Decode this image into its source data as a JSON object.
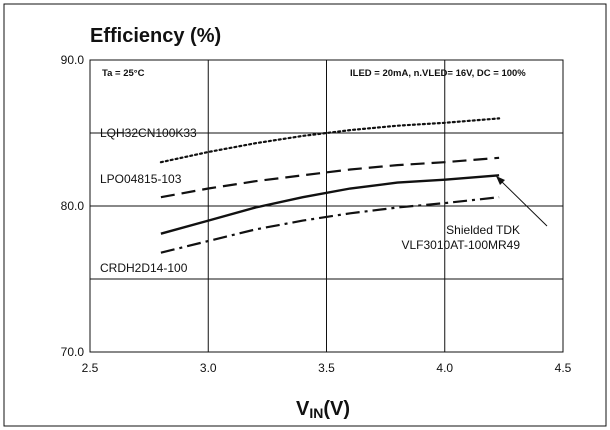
{
  "chart_data": {
    "type": "line",
    "title": "Efficiency (%)",
    "xlabel": "VIN(V)",
    "xlabel_main": "V",
    "xlabel_sub": "IN",
    "xlabel_unit": "(V)",
    "ylabel": "",
    "xlim": [
      2.5,
      4.5
    ],
    "ylim": [
      70,
      90
    ],
    "x_ticks": [
      2.5,
      3.0,
      3.5,
      4.0,
      4.5
    ],
    "x_tick_labels": [
      "2.5",
      "3.0",
      "3.5",
      "4.0",
      "4.5"
    ],
    "y_ticks": [
      70,
      75,
      80,
      85,
      90
    ],
    "y_tick_labels": [
      "70.0",
      "",
      "80.0",
      "",
      "90.0"
    ],
    "grid": true,
    "conditions": {
      "ta": "Ta = 25°C",
      "iled": "ILED = 20mA, n.VLED= 16V, DC = 100%"
    },
    "series": [
      {
        "name": "LQH32CN100K33",
        "style": "dotted",
        "x": [
          2.8,
          3.0,
          3.2,
          3.4,
          3.6,
          3.8,
          4.0,
          4.23
        ],
        "y": [
          83.0,
          83.7,
          84.3,
          84.8,
          85.2,
          85.5,
          85.7,
          86.0
        ]
      },
      {
        "name": "LPO04815-103",
        "style": "dashed",
        "x": [
          2.8,
          3.0,
          3.2,
          3.4,
          3.6,
          3.8,
          4.0,
          4.23
        ],
        "y": [
          80.6,
          81.2,
          81.7,
          82.1,
          82.5,
          82.8,
          83.0,
          83.3
        ]
      },
      {
        "name": "Shielded TDK VLF3010AT-100MR49",
        "name_line1": "Shielded TDK",
        "name_line2": "VLF3010AT-100MR49",
        "style": "solid",
        "x": [
          2.8,
          3.0,
          3.2,
          3.4,
          3.6,
          3.8,
          4.0,
          4.23
        ],
        "y": [
          78.1,
          79.0,
          79.9,
          80.6,
          81.2,
          81.6,
          81.8,
          82.1
        ]
      },
      {
        "name": "CRDH2D14-100",
        "style": "dashdot",
        "x": [
          2.8,
          3.0,
          3.2,
          3.4,
          3.6,
          3.8,
          4.0,
          4.23
        ],
        "y": [
          76.8,
          77.6,
          78.4,
          79.0,
          79.5,
          79.9,
          80.2,
          80.6
        ]
      }
    ]
  }
}
